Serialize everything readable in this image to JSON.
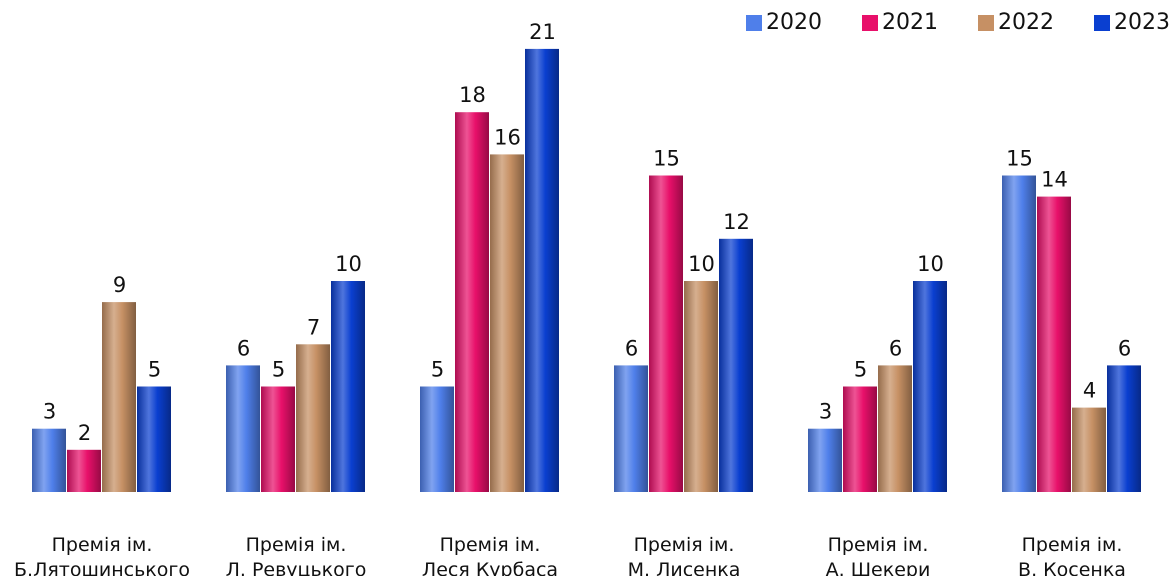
{
  "chart_data": {
    "type": "bar",
    "categories": [
      [
        "Премія ім.",
        "Б.Лятошинського"
      ],
      [
        "Премія ім.",
        "Л. Ревуцького"
      ],
      [
        "Премія ім.",
        "Леся Курбаса"
      ],
      [
        "Премія ім.",
        "М. Лисенка"
      ],
      [
        "Премія ім.",
        "А. Шекери"
      ],
      [
        "Премія ім.",
        "В. Косенка"
      ]
    ],
    "series": [
      {
        "name": "2020",
        "color": "#4F7FEA",
        "values": [
          3,
          6,
          5,
          6,
          3,
          15
        ]
      },
      {
        "name": "2021",
        "color": "#E8106A",
        "values": [
          2,
          5,
          18,
          15,
          5,
          14
        ]
      },
      {
        "name": "2022",
        "color": "#C69064",
        "values": [
          9,
          7,
          16,
          10,
          6,
          4
        ]
      },
      {
        "name": "2023",
        "color": "#0A3FD0",
        "values": [
          5,
          10,
          21,
          12,
          10,
          6
        ]
      }
    ],
    "legend_position": "top-right",
    "grid": false
  }
}
